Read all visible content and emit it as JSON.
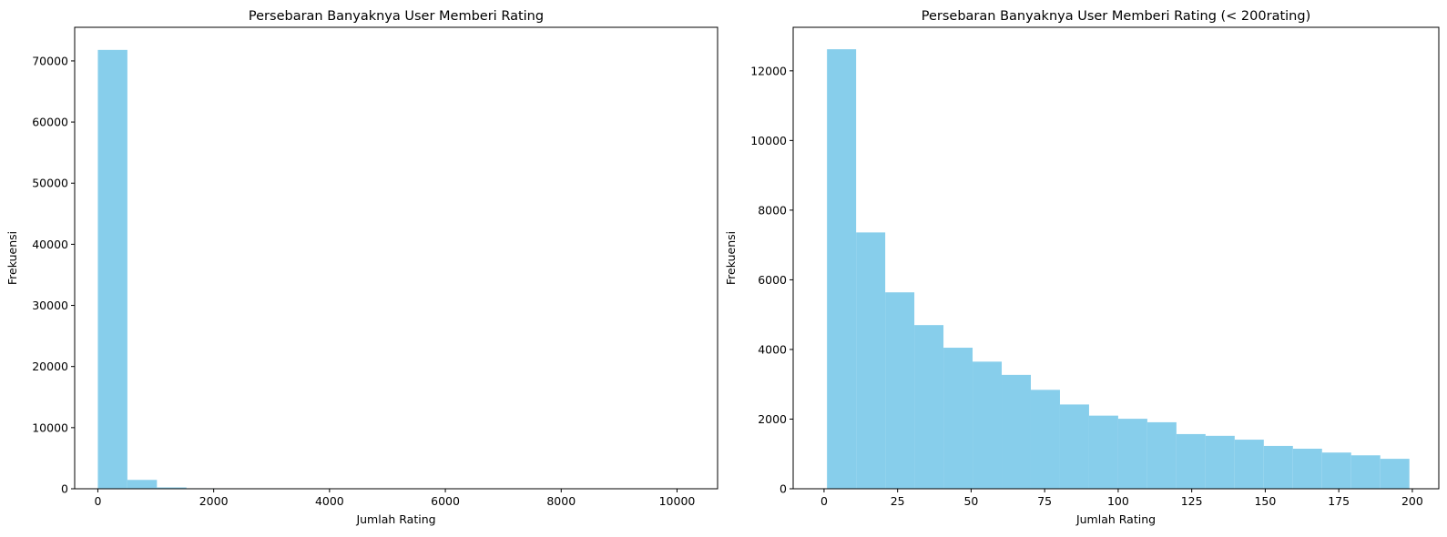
{
  "chart_data": [
    {
      "type": "bar",
      "title": "Persebaran Banyaknya User Memberi Rating",
      "xlabel": "Jumlah Rating",
      "ylabel": "Frekuensi",
      "color": "#87CEEB",
      "xlim": [
        -400,
        10700
      ],
      "ylim": [
        0,
        75500
      ],
      "xticks": [
        0,
        2000,
        4000,
        6000,
        8000,
        10000
      ],
      "yticks": [
        0,
        10000,
        20000,
        30000,
        40000,
        50000,
        60000,
        70000
      ],
      "bin_edges": [
        0,
        510,
        1020,
        1530,
        2040,
        2550,
        3060,
        3570,
        4080,
        4590,
        5100,
        5610,
        6120,
        6630,
        7140,
        7650,
        8160,
        8670,
        9180,
        9690,
        10200
      ],
      "values": [
        71800,
        1450,
        220,
        80,
        30,
        10,
        5,
        3,
        2,
        1,
        1,
        0,
        0,
        0,
        0,
        0,
        0,
        0,
        0,
        1
      ],
      "grid": false
    },
    {
      "type": "bar",
      "title": "Persebaran Banyaknya User Memberi Rating (< 200rating)",
      "xlabel": "Jumlah Rating",
      "ylabel": "Frekuensi",
      "color": "#87CEEB",
      "xlim": [
        -10.5,
        209
      ],
      "ylim": [
        0,
        13250
      ],
      "xticks": [
        0,
        25,
        50,
        75,
        100,
        125,
        150,
        175,
        200
      ],
      "yticks": [
        0,
        2000,
        4000,
        6000,
        8000,
        10000,
        12000
      ],
      "bin_edges": [
        1,
        10.9,
        20.8,
        30.7,
        40.6,
        50.5,
        60.4,
        70.3,
        80.2,
        90.1,
        100,
        109.9,
        119.8,
        129.7,
        139.6,
        149.5,
        159.4,
        169.3,
        179.2,
        189.1,
        199
      ],
      "values": [
        12620,
        7360,
        5640,
        4700,
        4050,
        3650,
        3270,
        2840,
        2420,
        2100,
        2010,
        1910,
        1570,
        1520,
        1410,
        1230,
        1150,
        1040,
        960,
        860
      ],
      "grid": false
    }
  ]
}
